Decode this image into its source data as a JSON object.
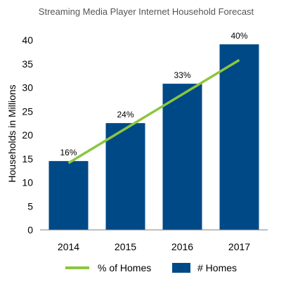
{
  "chart_data": {
    "type": "bar",
    "title": "Streaming Media Player Internet Household Forecast",
    "xlabel": "",
    "ylabel": "Households in Millions",
    "ylim": [
      0,
      40
    ],
    "yticks": [
      0,
      5,
      10,
      15,
      20,
      25,
      30,
      35,
      40
    ],
    "categories": [
      "2014",
      "2015",
      "2016",
      "2017"
    ],
    "grid": false,
    "legend": "bottom",
    "series": [
      {
        "name": "# Homes",
        "type": "bar",
        "color": "#004987",
        "values": [
          14.5,
          22.5,
          30.8,
          39.1
        ]
      },
      {
        "name": "% of Homes",
        "type": "line",
        "color": "#8cc63f",
        "values": [
          14.1,
          null,
          null,
          35.8
        ],
        "labels": [
          "16%",
          "24%",
          "33%",
          "40%"
        ]
      }
    ]
  }
}
